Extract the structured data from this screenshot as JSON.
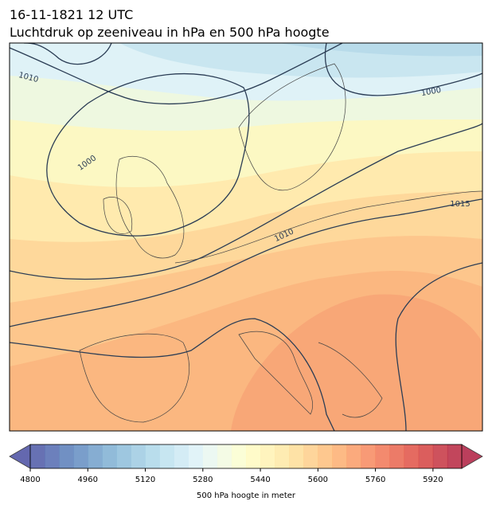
{
  "title": [
    "16-11-1821 12 UTC",
    "Luchtdruk op zeeniveau in hPa en 500 hPa hoogte"
  ],
  "contour_labels": [
    "1010",
    "1000",
    "1000",
    "1015",
    "1010"
  ],
  "colorbar": {
    "label": "500 hPa hoogte in meter",
    "lim": [
      4800,
      6000
    ],
    "level_step": 40,
    "ticks": [
      4800,
      4960,
      5120,
      5280,
      5440,
      5600,
      5760,
      5920
    ]
  }
}
